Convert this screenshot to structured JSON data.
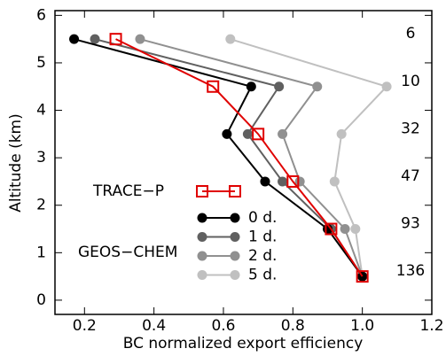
{
  "chart_data": {
    "type": "line",
    "xlabel": "BC normalized export efficiency",
    "ylabel": "Altitude (km)",
    "y": [
      5.5,
      4.5,
      3.5,
      2.5,
      1.5,
      0.5
    ],
    "series": [
      {
        "name": "TRACE−P",
        "color": "#e00000",
        "marker": "square",
        "values": [
          0.29,
          0.57,
          0.7,
          0.8,
          0.91,
          1.0
        ]
      },
      {
        "name": "0 d.",
        "color": "#000000",
        "marker": "circle",
        "values": [
          0.17,
          0.68,
          0.61,
          0.72,
          0.9,
          1.0
        ]
      },
      {
        "name": "1 d.",
        "color": "#606060",
        "marker": "circle",
        "values": [
          0.23,
          0.76,
          0.67,
          0.77,
          0.91,
          1.0
        ]
      },
      {
        "name": "2 d.",
        "color": "#909090",
        "marker": "circle",
        "values": [
          0.36,
          0.87,
          0.77,
          0.82,
          0.95,
          1.0
        ]
      },
      {
        "name": "5 d.",
        "color": "#c0c0c0",
        "marker": "circle",
        "values": [
          0.62,
          1.07,
          0.94,
          0.92,
          0.98,
          1.0
        ]
      }
    ],
    "legend_group_label": "GEOS−CHEM",
    "right_labels": [
      "6",
      "10",
      "32",
      "47",
      "93",
      "136"
    ],
    "xlim": [
      0.115,
      1.2
    ],
    "ylim": [
      -0.3,
      6.1
    ],
    "xticks": [
      0.2,
      0.4,
      0.6,
      0.8,
      {
        "value": 1,
        "label": "1.0"
      },
      1.2
    ],
    "yticks": [
      0,
      1,
      2,
      3,
      4,
      5,
      6
    ]
  }
}
